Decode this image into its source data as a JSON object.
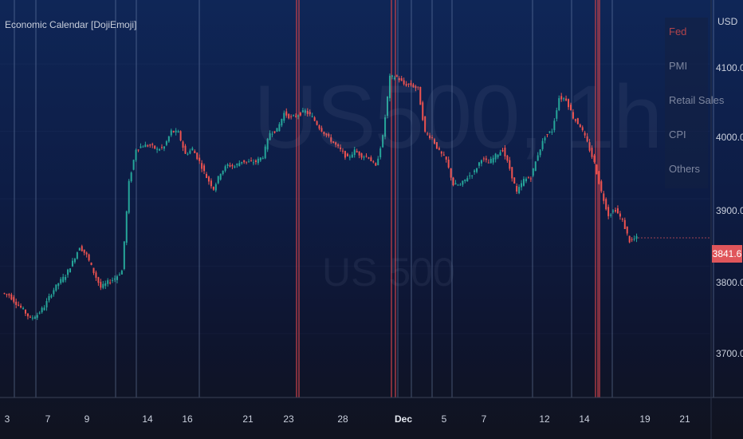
{
  "indicator": {
    "title": "Economic Calendar [DojiEmoji]"
  },
  "watermark": {
    "symbol": "US500, 1h",
    "description": "US 500"
  },
  "price_axis": {
    "currency": "USD",
    "last_price_label": "3841.6"
  },
  "legend": {
    "items": [
      "Fed",
      "PMI",
      "Retail Sales",
      "CPI",
      "Others"
    ]
  },
  "colors": {
    "up": "#26a69a",
    "down": "#ef5350",
    "fed_line": "#c0404a",
    "event_line": "#8aa0c8",
    "last_price_bg": "#e0565b"
  },
  "chart_data": {
    "type": "line",
    "title": "US500, 1h",
    "ylabel": "USD",
    "ylim": [
      3605,
      4195
    ],
    "y_ticks": [
      "4100.0",
      "4000.0",
      "3900.0",
      "3800.0",
      "3700.0"
    ],
    "x_ticks": [
      "3",
      "7",
      "9",
      "14",
      "16",
      "21",
      "23",
      "28",
      "Dec",
      "5",
      "7",
      "12",
      "14",
      "19",
      "21"
    ],
    "series": [
      {
        "values": [
          3760,
          3757,
          3745,
          3735,
          3722,
          3728,
          3740,
          3760,
          3775,
          3786,
          3806,
          3829,
          3816,
          3791,
          3768,
          3776,
          3782,
          3793,
          3924,
          3974,
          3979,
          3979,
          3973,
          3977,
          4000,
          3998,
          3966,
          3974,
          3955,
          3932,
          3915,
          3939,
          3950,
          3948,
          3956,
          3954,
          3955,
          3963,
          3998,
          4002,
          4027,
          4020,
          4025,
          4030,
          4021,
          4006,
          3994,
          3983,
          3972,
          3960,
          3971,
          3964,
          3962,
          3947,
          3992,
          4080,
          4081,
          4070,
          4069,
          4063,
          3998,
          3990,
          3970,
          3957,
          3921,
          3920,
          3932,
          3940,
          3960,
          3953,
          3964,
          3973,
          3945,
          3909,
          3928,
          3932,
          3966,
          3993,
          4001,
          4050,
          4048,
          4021,
          4008,
          3983,
          3953,
          3910,
          3876,
          3884,
          3867,
          3837,
          3842
        ]
      }
    ],
    "candle_interval": "1h",
    "event_lines": [
      {
        "date_index": 0,
        "type": "Others"
      },
      {
        "date_index": 1,
        "type": "Others"
      },
      {
        "date_index": 2,
        "type": "Others"
      },
      {
        "date_index": 3,
        "type": "Others"
      },
      {
        "date_index": 4,
        "type": "Others"
      },
      {
        "date_index": 5,
        "type": "Fed"
      },
      {
        "date_index": 6,
        "type": "Fed"
      },
      {
        "date_index": 7,
        "type": "Fed"
      },
      {
        "date_index": 8,
        "type": "Fed"
      },
      {
        "date_index": 9,
        "type": "Others"
      },
      {
        "date_index": 10,
        "type": "Others"
      },
      {
        "date_index": 11,
        "type": "Others"
      },
      {
        "date_index": 12,
        "type": "Others"
      },
      {
        "date_index": 13,
        "type": "Others"
      },
      {
        "date_index": 14,
        "type": "Others"
      },
      {
        "date_index": 15,
        "type": "Fed"
      },
      {
        "date_index": 16,
        "type": "Fed"
      },
      {
        "date_index": 17,
        "type": "Fed"
      },
      {
        "date_index": 18,
        "type": "Others"
      },
      {
        "date_index": 19,
        "type": "Others"
      }
    ]
  }
}
